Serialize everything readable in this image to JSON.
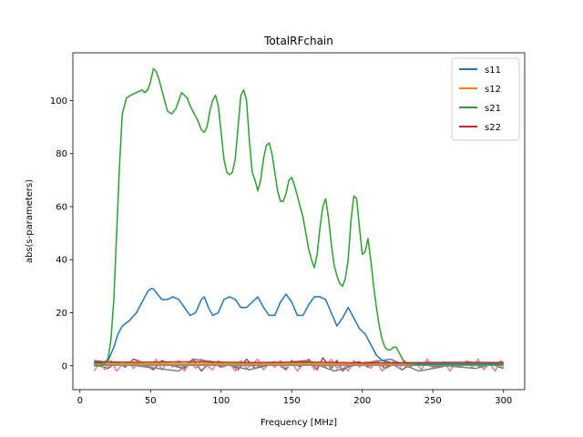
{
  "chart_data": {
    "type": "line",
    "title": "TotalRFchain",
    "xlabel": "Frequency [MHz]",
    "ylabel": "abs(s-parameters)",
    "xlim": [
      -5,
      315
    ],
    "ylim": [
      -9,
      118
    ],
    "xticks": [
      0,
      50,
      100,
      150,
      200,
      250,
      300
    ],
    "yticks": [
      0,
      20,
      40,
      60,
      80,
      100
    ],
    "grid": false,
    "legend_position": "top-right",
    "series": [
      {
        "name": "s11",
        "color": "#1f77b4",
        "x": [
          10,
          15,
          20,
          24,
          27,
          30,
          35,
          40,
          45,
          48,
          50,
          52,
          55,
          58,
          62,
          66,
          70,
          74,
          78,
          82,
          86,
          88,
          91,
          94,
          98,
          102,
          106,
          110,
          114,
          118,
          122,
          126,
          130,
          134,
          138,
          142,
          146,
          150,
          154,
          158,
          162,
          166,
          170,
          174,
          178,
          182,
          186,
          190,
          194,
          198,
          202,
          206,
          210,
          214,
          218,
          222,
          226,
          230,
          240,
          250,
          260,
          270,
          280,
          290,
          300
        ],
        "y": [
          1,
          1,
          2,
          7,
          12,
          15,
          17,
          20,
          25,
          28,
          29,
          29,
          27,
          25,
          25,
          26,
          25,
          22,
          19,
          20,
          25,
          26,
          22,
          19,
          20,
          25,
          26,
          25,
          22,
          22,
          24,
          26,
          22,
          19,
          19,
          24,
          27,
          24,
          19,
          19,
          23,
          26,
          26,
          25,
          20,
          15,
          18,
          22,
          18,
          14,
          12,
          8,
          4,
          2,
          1.5,
          1,
          1,
          1,
          0.8,
          0.8,
          0.8,
          0.8,
          0.8,
          0.8,
          0.8
        ]
      },
      {
        "name": "s12",
        "color": "#ff7f0e",
        "x": [
          10,
          50,
          100,
          150,
          200,
          250,
          300
        ],
        "y": [
          0.5,
          0.5,
          0.5,
          0.5,
          0.5,
          0.5,
          0.5
        ]
      },
      {
        "name": "s21",
        "color": "#2ca02c",
        "x": [
          10,
          15,
          18,
          20,
          22,
          24,
          26,
          28,
          30,
          33,
          36,
          40,
          44,
          46,
          48,
          50,
          52,
          54,
          56,
          58,
          60,
          62,
          65,
          68,
          70,
          72,
          74,
          76,
          78,
          80,
          83,
          86,
          88,
          90,
          92,
          94,
          96,
          98,
          100,
          102,
          104,
          106,
          108,
          110,
          112,
          114,
          116,
          118,
          120,
          122,
          124,
          126,
          128,
          130,
          132,
          134,
          136,
          138,
          140,
          142,
          144,
          146,
          148,
          150,
          152,
          155,
          158,
          160,
          162,
          164,
          166,
          168,
          170,
          172,
          174,
          176,
          178,
          180,
          182,
          184,
          186,
          188,
          190,
          192,
          194,
          196,
          198,
          200,
          202,
          204,
          206,
          208,
          210,
          212,
          214,
          216,
          218,
          220,
          222,
          224,
          226,
          228,
          230,
          240,
          250,
          260,
          270,
          280,
          290,
          300
        ],
        "y": [
          0,
          0,
          1,
          3,
          10,
          25,
          50,
          75,
          95,
          101,
          102,
          103,
          104,
          103,
          104,
          107,
          112,
          111,
          108,
          104,
          100,
          96,
          95,
          97,
          100,
          103,
          102,
          101,
          98,
          96,
          93,
          89,
          88,
          90,
          96,
          100,
          102,
          98,
          88,
          78,
          73,
          72,
          73,
          78,
          90,
          102,
          104,
          100,
          85,
          73,
          70,
          66,
          70,
          78,
          83,
          84,
          80,
          73,
          66,
          62,
          62,
          65,
          70,
          71,
          68,
          62,
          56,
          50,
          44,
          40,
          37,
          42,
          52,
          60,
          63,
          56,
          46,
          38,
          34,
          31,
          30,
          33,
          40,
          55,
          64,
          63,
          52,
          42,
          43,
          48,
          40,
          30,
          22,
          15,
          10,
          7,
          6,
          6,
          7,
          7,
          5,
          3,
          1,
          0.5,
          0.5,
          0.5,
          0.5,
          0.5,
          0.5,
          0.5
        ]
      },
      {
        "name": "s22",
        "color": "#d62728",
        "x": [
          10,
          40,
          80,
          120,
          160,
          200,
          240,
          270,
          300
        ],
        "y": [
          1.5,
          1.3,
          1.5,
          1.2,
          1.4,
          1.1,
          1.2,
          1.3,
          1.2
        ]
      },
      {
        "name": "",
        "color": "#8c564b",
        "x": [
          10,
          20,
          26,
          32,
          38,
          45,
          52,
          58,
          66,
          74,
          80,
          86,
          92,
          100,
          106,
          112,
          118,
          124,
          130,
          138,
          146,
          150,
          156,
          162,
          168,
          172,
          178,
          182,
          186,
          192,
          198,
          204,
          210,
          216,
          222,
          228,
          236,
          244,
          252,
          260,
          268,
          276,
          284,
          292,
          300
        ],
        "y": [
          0.5,
          -1,
          1.5,
          -0.5,
          2.5,
          1,
          -1.5,
          2,
          0,
          -1,
          2.5,
          -2,
          1.5,
          -0.5,
          1,
          -1.5,
          2.5,
          -1,
          0.5,
          1.5,
          -1.5,
          2,
          -0.5,
          2.5,
          -1.5,
          3,
          -1,
          2,
          -2,
          1,
          1.5,
          -0.5,
          2,
          -1,
          0.5,
          -1.5,
          1,
          0.5,
          -0.5,
          1,
          0,
          1.5,
          -0.5,
          0.5,
          -1
        ]
      },
      {
        "name": "",
        "color": "#e377c2",
        "x": [
          10,
          14,
          18,
          22,
          26,
          30,
          34,
          38,
          42,
          46,
          50,
          54,
          58,
          62,
          66,
          70,
          74,
          78,
          82,
          86,
          90,
          94,
          98,
          102,
          106,
          110,
          114,
          118,
          122,
          126,
          130,
          134,
          138,
          142,
          146,
          150,
          154,
          158,
          162,
          166,
          170,
          174,
          178,
          182,
          186,
          190,
          194,
          198,
          202,
          206,
          210,
          214,
          218,
          222,
          226,
          230,
          234,
          238,
          242,
          246,
          250,
          254,
          258,
          262,
          266,
          270,
          274,
          278,
          282,
          286,
          290,
          294,
          298,
          300
        ],
        "y": [
          -2,
          1,
          -1.5,
          2,
          -2,
          0.5,
          1.5,
          -1,
          2,
          0,
          -1,
          2.5,
          -1.5,
          1,
          -0.5,
          2,
          -2,
          1.5,
          -1,
          2.5,
          0,
          -1.5,
          2,
          -0.5,
          1,
          -2,
          2,
          -1,
          0.5,
          2.5,
          -1.5,
          1,
          -0.5,
          2,
          -1,
          1.5,
          -2,
          0.5,
          2,
          -1.5,
          1,
          -0.5,
          2.5,
          -1,
          1,
          -2,
          2,
          -0.5,
          1.5,
          -1,
          2,
          -2,
          0.5,
          1.5,
          -1,
          2,
          -0.5,
          1,
          -1.5,
          2.5,
          -1,
          0.5,
          1.5,
          -2,
          1,
          -0.5,
          2,
          -1,
          2.5,
          -1.5,
          1,
          -2,
          2,
          -1
        ]
      },
      {
        "name": "",
        "color": "#7f7f7f",
        "x": [
          10,
          40,
          55,
          70,
          80,
          95,
          120,
          140,
          160,
          180,
          200,
          220,
          240,
          260,
          280,
          300
        ],
        "y": [
          2,
          0,
          -1,
          -2,
          2.5,
          1.5,
          -1.5,
          1,
          2,
          -2,
          1,
          2.5,
          -2,
          0,
          -1,
          1.5
        ]
      },
      {
        "name": "",
        "color": "#17becf",
        "x": [
          10,
          50,
          100,
          150,
          200,
          250,
          300
        ],
        "y": [
          0.2,
          0.2,
          0.2,
          0.2,
          0.2,
          0.2,
          0.2
        ]
      },
      {
        "name": "",
        "color": "#bcbd22",
        "x": [
          10,
          50,
          100,
          150,
          200,
          250,
          300
        ],
        "y": [
          0.8,
          0.8,
          0.8,
          0.8,
          0.8,
          0.8,
          0.8
        ]
      },
      {
        "name": "",
        "color": "#9467bd",
        "x": [
          10,
          50,
          100,
          150,
          200,
          250,
          300
        ],
        "y": [
          0.4,
          0.4,
          0.4,
          0.4,
          0.4,
          0.4,
          0.4
        ]
      }
    ],
    "legend": [
      "s11",
      "s12",
      "s21",
      "s22"
    ]
  }
}
